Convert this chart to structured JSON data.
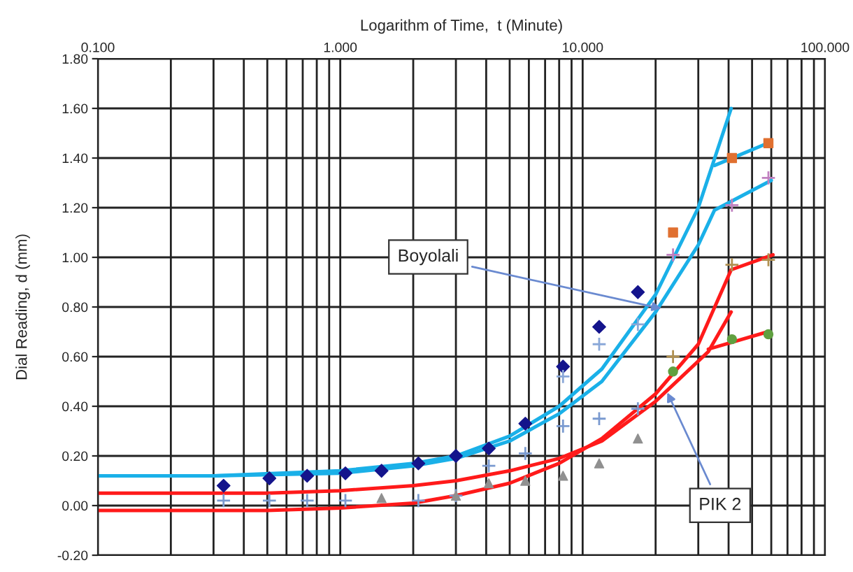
{
  "chart_data": {
    "type": "scatter",
    "xlabel": "Logarithm of Time,  t (Minute)",
    "ylabel": "Dial Reading, d (mm)",
    "log": "x",
    "grid": true,
    "xlim": [
      0.1,
      100
    ],
    "xticks": [
      {
        "value": 0.1,
        "label": "0.100"
      },
      {
        "value": 1,
        "label": "1.000"
      },
      {
        "value": 10,
        "label": "10.000"
      },
      {
        "value": 100,
        "label": "100.000"
      }
    ],
    "ylim": [
      -0.2,
      1.8
    ],
    "yticks": [
      {
        "value": -0.2,
        "label": "-0.20"
      },
      {
        "value": 0,
        "label": "0.00"
      },
      {
        "value": 0.2,
        "label": "0.20"
      },
      {
        "value": 0.4,
        "label": "0.40"
      },
      {
        "value": 0.6,
        "label": "0.60"
      },
      {
        "value": 0.8,
        "label": "0.80"
      },
      {
        "value": 1.0,
        "label": "1.00"
      },
      {
        "value": 1.2,
        "label": "1.20"
      },
      {
        "value": 1.4,
        "label": "1.40"
      },
      {
        "value": 1.6,
        "label": "1.60"
      },
      {
        "value": 1.8,
        "label": "1.80"
      }
    ],
    "series": [
      {
        "type": "line",
        "color": "#1ab0e8",
        "marker": "none",
        "x": [
          0.1,
          0.3,
          1,
          2,
          3,
          5,
          8,
          12,
          20,
          30,
          41
        ],
        "values": [
          0.12,
          0.12,
          0.14,
          0.17,
          0.2,
          0.28,
          0.4,
          0.55,
          0.85,
          1.2,
          1.6
        ]
      },
      {
        "type": "line",
        "color": "#1ab0e8",
        "marker": "none",
        "x": [
          35,
          58
        ],
        "values": [
          1.37,
          1.46
        ]
      },
      {
        "type": "line",
        "color": "#1ab0e8",
        "marker": "none",
        "x": [
          0.1,
          0.3,
          1,
          2,
          3,
          5,
          8,
          12,
          20,
          30,
          35,
          60
        ],
        "values": [
          0.12,
          0.12,
          0.13,
          0.16,
          0.19,
          0.26,
          0.37,
          0.5,
          0.78,
          1.05,
          1.19,
          1.31
        ]
      },
      {
        "type": "line",
        "color": "#ff1a1a",
        "marker": "none",
        "x": [
          0.1,
          0.5,
          1,
          2,
          3,
          5,
          8,
          12,
          20,
          30,
          41,
          61
        ],
        "values": [
          -0.02,
          -0.02,
          -0.01,
          0.01,
          0.04,
          0.09,
          0.17,
          0.27,
          0.45,
          0.65,
          0.95,
          1.01
        ]
      },
      {
        "type": "line",
        "color": "#ff1a1a",
        "marker": "none",
        "x": [
          0.1,
          0.5,
          1,
          2,
          3,
          5,
          8,
          12,
          20,
          33,
          41
        ],
        "values": [
          0.05,
          0.05,
          0.06,
          0.08,
          0.1,
          0.14,
          0.19,
          0.26,
          0.42,
          0.62,
          0.78
        ]
      },
      {
        "type": "line",
        "color": "#ff1a1a",
        "marker": "none",
        "x": [
          33,
          58
        ],
        "values": [
          0.63,
          0.7
        ]
      },
      {
        "color": "#14148c",
        "marker": "diamond",
        "x": [
          0.33,
          0.51,
          0.73,
          1.05,
          1.48,
          2.1,
          3.0,
          4.1,
          5.8,
          8.3,
          11.7,
          16.9
        ],
        "values": [
          0.08,
          0.11,
          0.12,
          0.13,
          0.14,
          0.17,
          0.2,
          0.23,
          0.33,
          0.56,
          0.72,
          0.86
        ]
      },
      {
        "color": "#8aa8d8",
        "marker": "cross",
        "x": [
          8.3,
          11.7,
          16.9
        ],
        "values": [
          0.52,
          0.65,
          0.73
        ]
      },
      {
        "color": "#c080c0",
        "marker": "cross",
        "x": [
          23.6,
          41.3,
          58.4
        ],
        "values": [
          1.01,
          1.21,
          1.32
        ]
      },
      {
        "color": "#e07030",
        "marker": "square",
        "x": [
          23.6,
          41.3,
          58.4
        ],
        "values": [
          1.1,
          1.4,
          1.46
        ]
      },
      {
        "color": "#7a9ad0",
        "marker": "cross",
        "x": [
          0.33,
          0.51,
          0.73,
          1.05,
          2.1,
          3.0,
          4.1,
          5.8,
          8.3,
          11.7,
          16.9
        ],
        "values": [
          0.02,
          0.02,
          0.02,
          0.02,
          0.02,
          0.04,
          0.16,
          0.21,
          0.32,
          0.35,
          0.39
        ]
      },
      {
        "color": "#b09050",
        "marker": "cross",
        "x": [
          23.6,
          41.3,
          58.4
        ],
        "values": [
          0.6,
          0.97,
          0.99
        ]
      },
      {
        "color": "#909090",
        "marker": "triangle",
        "x": [
          1.48,
          3.0,
          4.1,
          5.8,
          8.3,
          11.7,
          16.9
        ],
        "values": [
          0.03,
          0.04,
          0.09,
          0.1,
          0.12,
          0.17,
          0.27
        ]
      },
      {
        "color": "#60a040",
        "marker": "circle",
        "x": [
          23.6,
          41.3,
          58.4
        ],
        "values": [
          0.54,
          0.67,
          0.69
        ]
      }
    ],
    "annotations": [
      {
        "text": "Boyolali",
        "x": 21.9,
        "y": 0.79
      },
      {
        "text": "PIK 2",
        "x": 22,
        "y": 0.47
      }
    ]
  }
}
